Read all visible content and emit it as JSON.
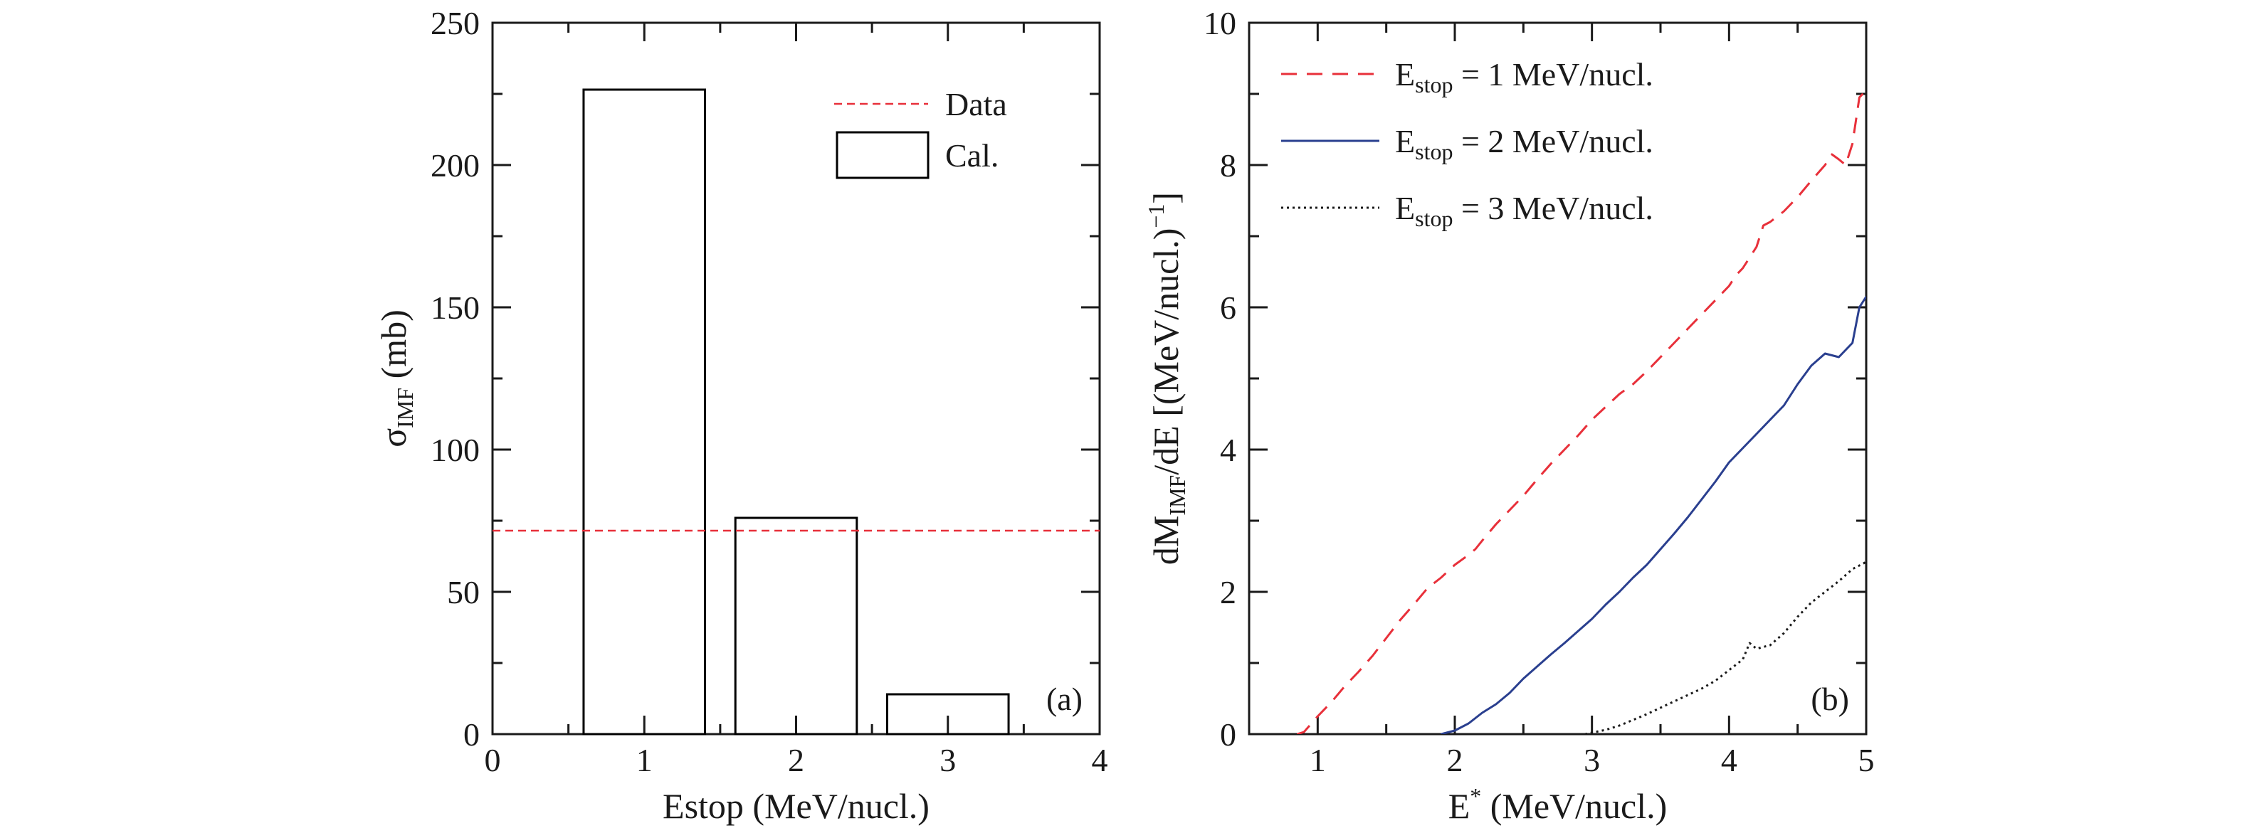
{
  "chart_data": [
    {
      "type": "bar",
      "panel_label": "(a)",
      "xlabel": "Estop (MeV/nucl.)",
      "ylabel": {
        "main": "σ",
        "sub": "IMF",
        "tail": " (mb)"
      },
      "xlim": [
        0,
        4
      ],
      "ylim": [
        0,
        250
      ],
      "xticks": [
        "0",
        "1",
        "2",
        "3",
        "4"
      ],
      "yticks": [
        "0",
        "50",
        "100",
        "150",
        "200",
        "250"
      ],
      "categories": [
        1,
        2,
        3
      ],
      "series": [
        {
          "name": "Cal.",
          "values": [
            226.5,
            76,
            14
          ],
          "bar_width": 0.8,
          "color": "#000000"
        }
      ],
      "reference_lines": [
        {
          "name": "Data",
          "y": 71.5,
          "color": "#e8303a",
          "style": "dashed"
        }
      ],
      "legend": {
        "position": "top-right",
        "entries": [
          {
            "label": "Data",
            "kind": "dashed-line",
            "color": "#e8303a"
          },
          {
            "label": "Cal.",
            "kind": "box",
            "color": "#000000"
          }
        ]
      },
      "grid": false
    },
    {
      "type": "line",
      "panel_label": "(b)",
      "xlabel": {
        "main": "E",
        "sup": "*",
        "tail": " (MeV/nucl.)"
      },
      "ylabel": {
        "main": "dM",
        "sub": "IMF",
        "mid": "/dE [(MeV/nucl.)",
        "sup": "−1",
        "tail": "]"
      },
      "xlim": [
        0.5,
        5
      ],
      "ylim": [
        0,
        10
      ],
      "xticks": [
        "1",
        "2",
        "3",
        "4",
        "5"
      ],
      "yticks": [
        "0",
        "2",
        "4",
        "6",
        "8",
        "10"
      ],
      "series": [
        {
          "name": "E_stop = 1 MeV/nucl.",
          "color": "#e8303a",
          "style": "dashed",
          "x": [
            0.85,
            0.9,
            1.0,
            1.1,
            1.2,
            1.3,
            1.4,
            1.5,
            1.6,
            1.7,
            1.8,
            1.9,
            2.0,
            2.1,
            2.15,
            2.2,
            2.3,
            2.4,
            2.5,
            2.6,
            2.7,
            2.8,
            2.9,
            3.0,
            3.1,
            3.2,
            3.3,
            3.4,
            3.5,
            3.6,
            3.7,
            3.8,
            3.9,
            4.0,
            4.05,
            4.1,
            4.2,
            4.25,
            4.3,
            4.4,
            4.5,
            4.6,
            4.7,
            4.75,
            4.8,
            4.85,
            4.9,
            4.95,
            5.0
          ],
          "y": [
            0.0,
            0.03,
            0.25,
            0.45,
            0.68,
            0.88,
            1.1,
            1.35,
            1.6,
            1.82,
            2.05,
            2.2,
            2.38,
            2.52,
            2.6,
            2.72,
            2.95,
            3.15,
            3.35,
            3.58,
            3.8,
            4.0,
            4.2,
            4.42,
            4.6,
            4.78,
            4.92,
            5.1,
            5.3,
            5.5,
            5.7,
            5.9,
            6.1,
            6.3,
            6.45,
            6.55,
            6.85,
            7.15,
            7.2,
            7.35,
            7.55,
            7.78,
            8.0,
            8.15,
            8.08,
            8.0,
            8.3,
            8.95,
            9.05
          ]
        },
        {
          "name": "E_stop = 2 MeV/nucl.",
          "color": "#2a3f8f",
          "style": "solid",
          "x": [
            1.9,
            2.0,
            2.1,
            2.2,
            2.3,
            2.4,
            2.5,
            2.6,
            2.7,
            2.8,
            2.9,
            3.0,
            3.1,
            3.2,
            3.3,
            3.4,
            3.5,
            3.6,
            3.7,
            3.8,
            3.9,
            4.0,
            4.1,
            4.2,
            4.3,
            4.4,
            4.5,
            4.6,
            4.7,
            4.8,
            4.9,
            4.95,
            5.0
          ],
          "y": [
            0.0,
            0.05,
            0.15,
            0.3,
            0.42,
            0.58,
            0.78,
            0.95,
            1.12,
            1.28,
            1.45,
            1.62,
            1.82,
            2.0,
            2.2,
            2.38,
            2.6,
            2.82,
            3.05,
            3.3,
            3.55,
            3.82,
            4.02,
            4.22,
            4.42,
            4.62,
            4.92,
            5.18,
            5.35,
            5.3,
            5.5,
            6.0,
            6.15
          ]
        },
        {
          "name": "E_stop = 3 MeV/nucl.",
          "color": "#1a1a1a",
          "style": "dotted",
          "x": [
            2.95,
            3.0,
            3.1,
            3.2,
            3.3,
            3.4,
            3.5,
            3.6,
            3.7,
            3.8,
            3.9,
            4.0,
            4.1,
            4.15,
            4.2,
            4.3,
            4.4,
            4.5,
            4.6,
            4.7,
            4.8,
            4.9,
            5.0
          ],
          "y": [
            0.0,
            0.02,
            0.06,
            0.12,
            0.2,
            0.28,
            0.37,
            0.46,
            0.55,
            0.64,
            0.75,
            0.9,
            1.05,
            1.28,
            1.2,
            1.25,
            1.42,
            1.65,
            1.85,
            2.0,
            2.15,
            2.32,
            2.42
          ]
        }
      ],
      "legend": {
        "position": "top-left",
        "entries": [
          {
            "base": "E",
            "sub": "stop",
            "tail": " = 1 MeV/nucl."
          },
          {
            "base": "E",
            "sub": "stop",
            "tail": " = 2 MeV/nucl."
          },
          {
            "base": "E",
            "sub": "stop",
            "tail": " = 3 MeV/nucl."
          }
        ]
      },
      "grid": false
    }
  ]
}
